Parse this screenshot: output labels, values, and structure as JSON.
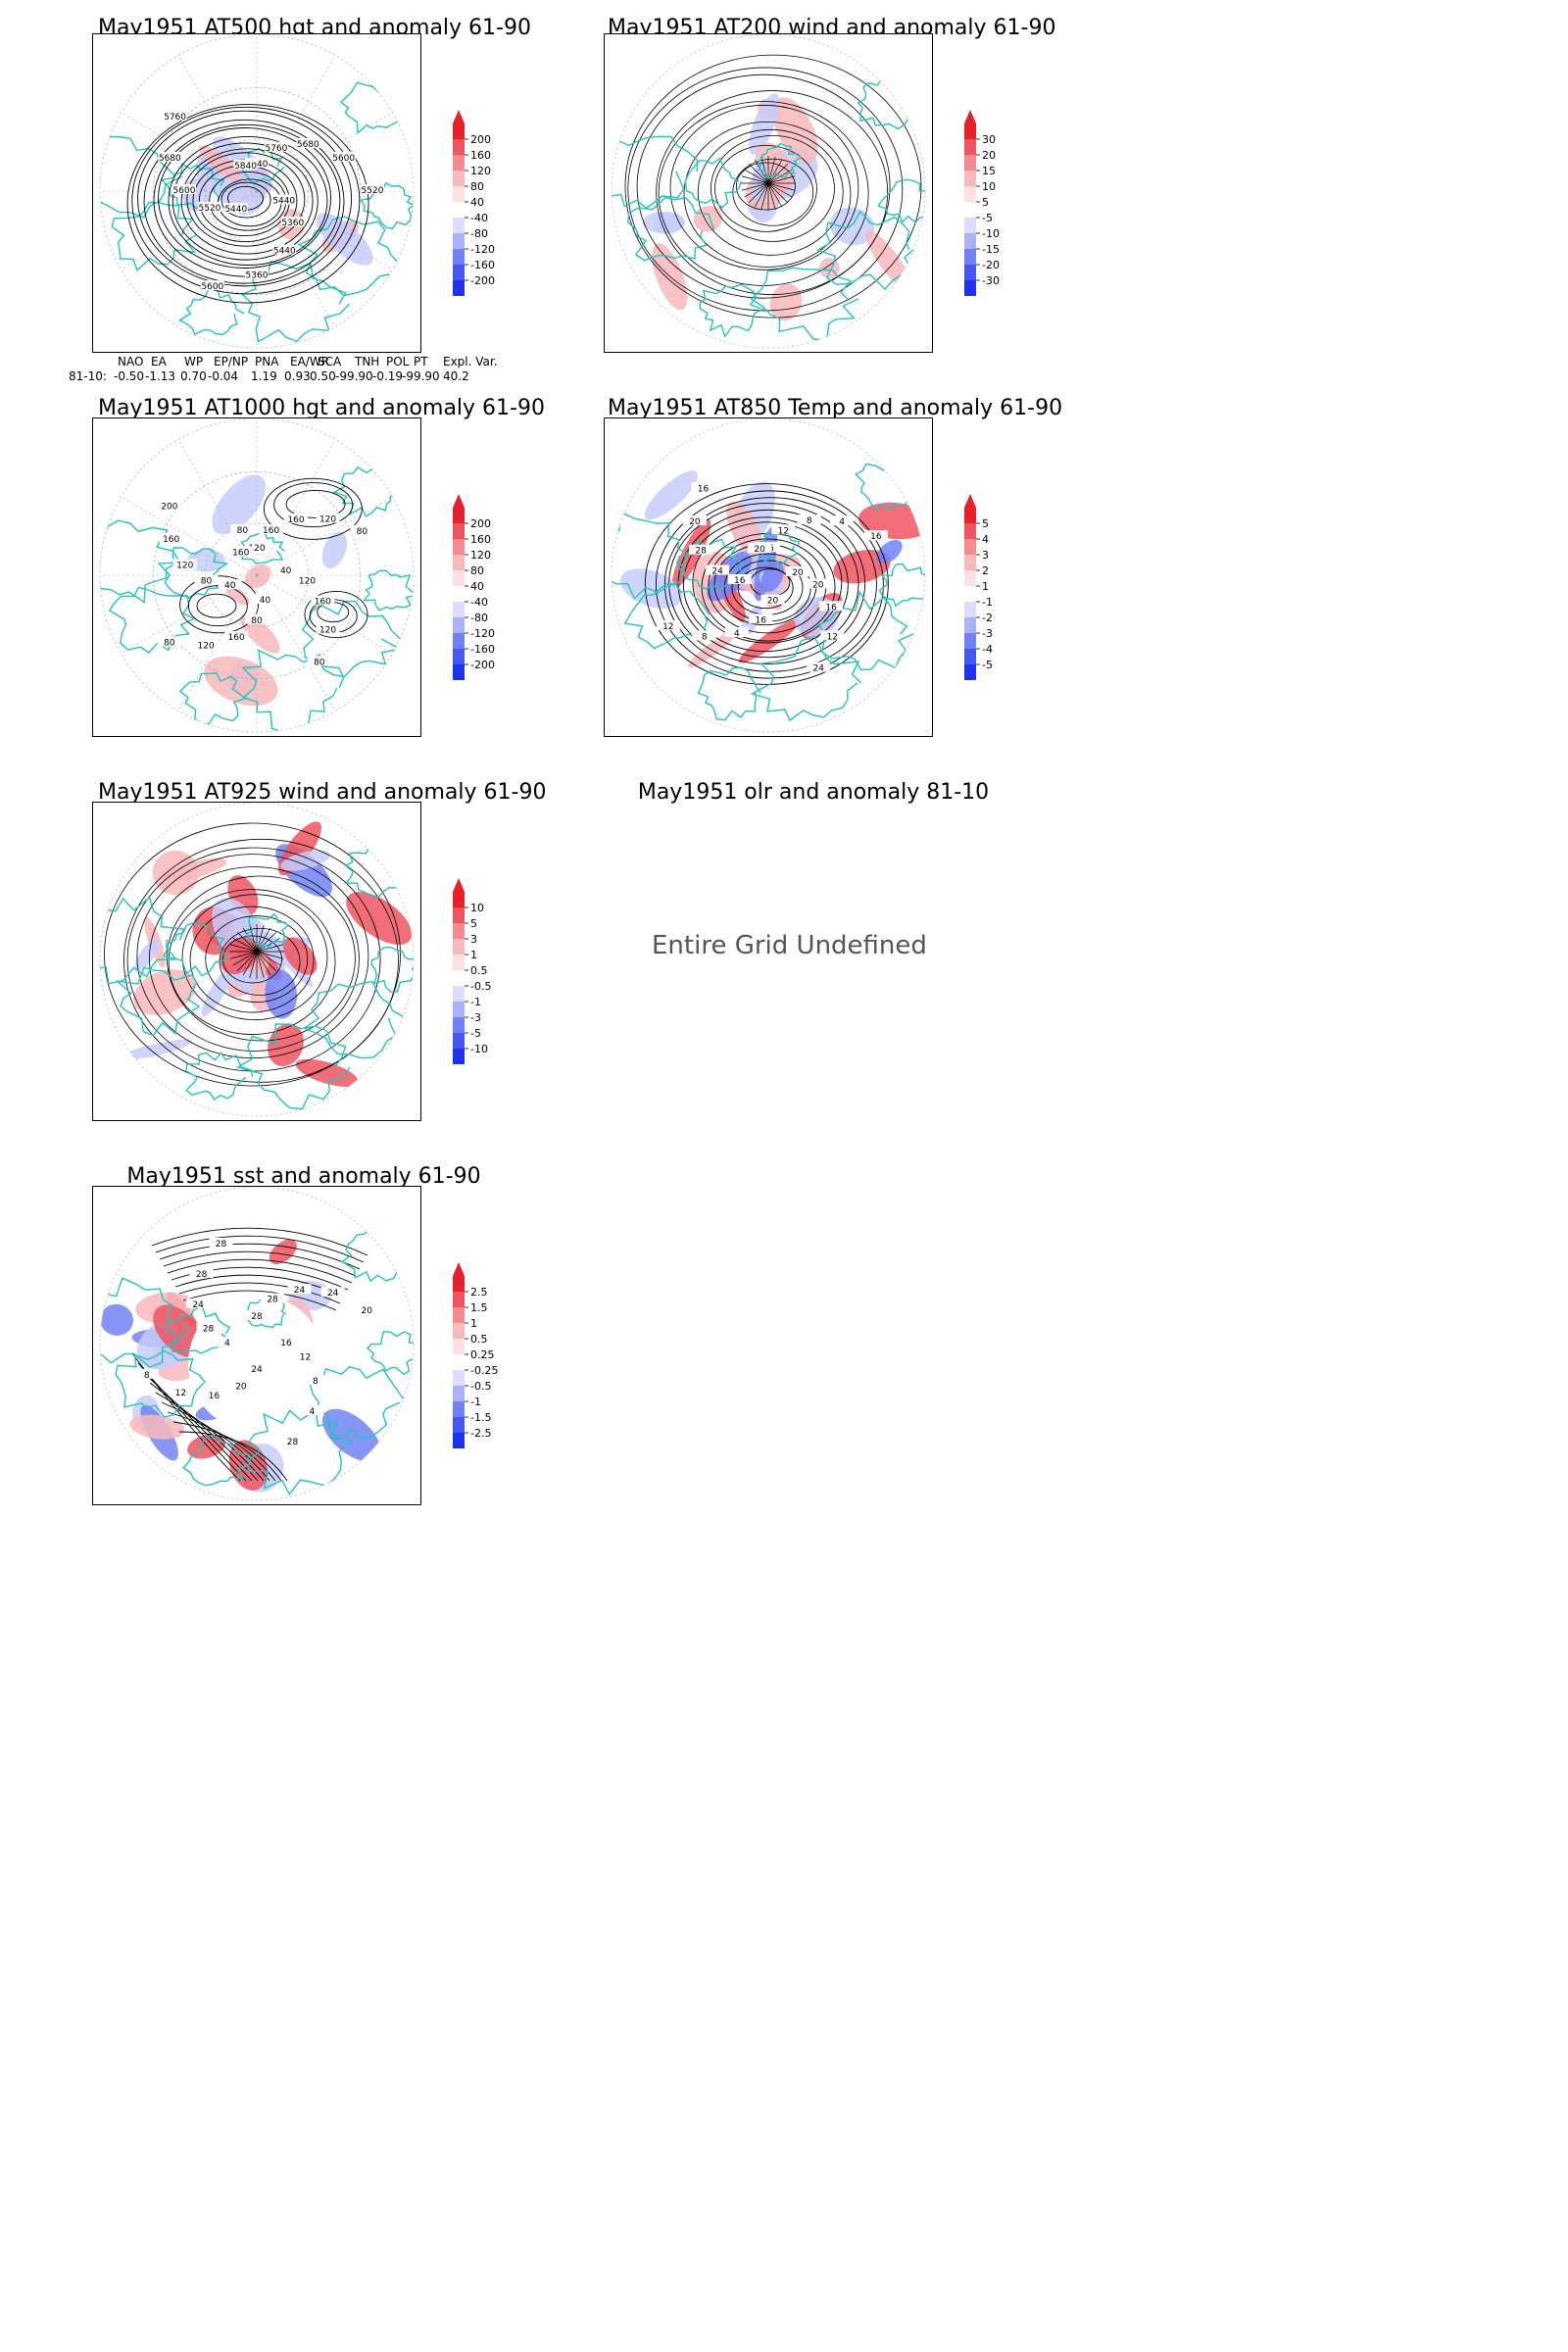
{
  "panels": [
    {
      "id": "p1",
      "title": "May1951 AT500 hgt and anomaly 61-90",
      "colorbar": [
        "200",
        "160",
        "120",
        "80",
        "40",
        "-40",
        "-80",
        "-120",
        "-160",
        "-200"
      ],
      "contours": [
        "5840",
        "5760",
        "5680",
        "5600",
        "5520",
        "5440",
        "5360",
        "5440",
        "5360",
        "5600",
        "5440",
        "5520",
        "5600",
        "5680",
        "5760",
        "5840"
      ]
    },
    {
      "id": "p2",
      "title": "May1951 AT200 wind and anomaly 61-90",
      "colorbar": [
        "30",
        "20",
        "15",
        "10",
        "5",
        "-5",
        "-10",
        "-15",
        "-20",
        "-30"
      ]
    },
    {
      "id": "p3",
      "title": "May1951 AT1000 hgt and anomaly 61-90",
      "colorbar": [
        "200",
        "160",
        "120",
        "80",
        "40",
        "-40",
        "-80",
        "-120",
        "-160",
        "-200"
      ],
      "contours": [
        "120",
        "160",
        "160",
        "120",
        "80",
        "40",
        "120",
        "160",
        "120",
        "80",
        "40",
        "80",
        "160",
        "120",
        "80",
        "40",
        "80",
        "120",
        "160",
        "200",
        "160",
        "80"
      ]
    },
    {
      "id": "p4",
      "title": "May1951 AT850 Temp and anomaly 61-90",
      "colorbar": [
        "5",
        "4",
        "3",
        "2",
        "1",
        "-1",
        "-2",
        "-3",
        "-4",
        "-5"
      ],
      "contours": [
        "16",
        "12",
        "8",
        "4",
        "16",
        "20",
        "20",
        "16",
        "12",
        "24",
        "20",
        "16",
        "4",
        "8",
        "12",
        "16",
        "24",
        "28",
        "20",
        "16",
        "20"
      ]
    },
    {
      "id": "p5",
      "title": "May1951 AT925 wind and anomaly 61-90",
      "colorbar": [
        "10",
        "5",
        "3",
        "1",
        "0.5",
        "-0.5",
        "-1",
        "-3",
        "-5",
        "-10"
      ]
    },
    {
      "id": "p6",
      "title": "May1951 olr and anomaly 81-10",
      "message": "Entire Grid Undefined"
    },
    {
      "id": "p7",
      "title": "May1951 sst and anomaly 61-90",
      "colorbar": [
        "2.5",
        "1.5",
        "1",
        "0.5",
        "0.25",
        "-0.25",
        "-0.5",
        "-1",
        "-1.5",
        "-2.5"
      ],
      "contours": [
        "28",
        "28",
        "24",
        "24",
        "20",
        "16",
        "12",
        "8",
        "4",
        "28",
        "24",
        "20",
        "16",
        "12",
        "8",
        "4",
        "28",
        "24",
        "28",
        "28"
      ]
    }
  ],
  "teleconnection": {
    "headers": [
      "NAO",
      "EA",
      "WP",
      "EP/NP",
      "PNA",
      "EA/WR",
      "SCA",
      "TNH",
      "POL",
      "PT",
      "Expl. Var."
    ],
    "row_label": "81-10:",
    "values": [
      "-0.50",
      "-1.13",
      "0.70",
      "-0.04",
      "1.19",
      "0.93",
      "0.50",
      "-99.90",
      "-0.19",
      "-99.90",
      "40.2"
    ]
  },
  "colors": {
    "positive": "#e8202a",
    "negative": "#2a3df0",
    "coast": "#22c4c0",
    "contour": "#000000"
  }
}
